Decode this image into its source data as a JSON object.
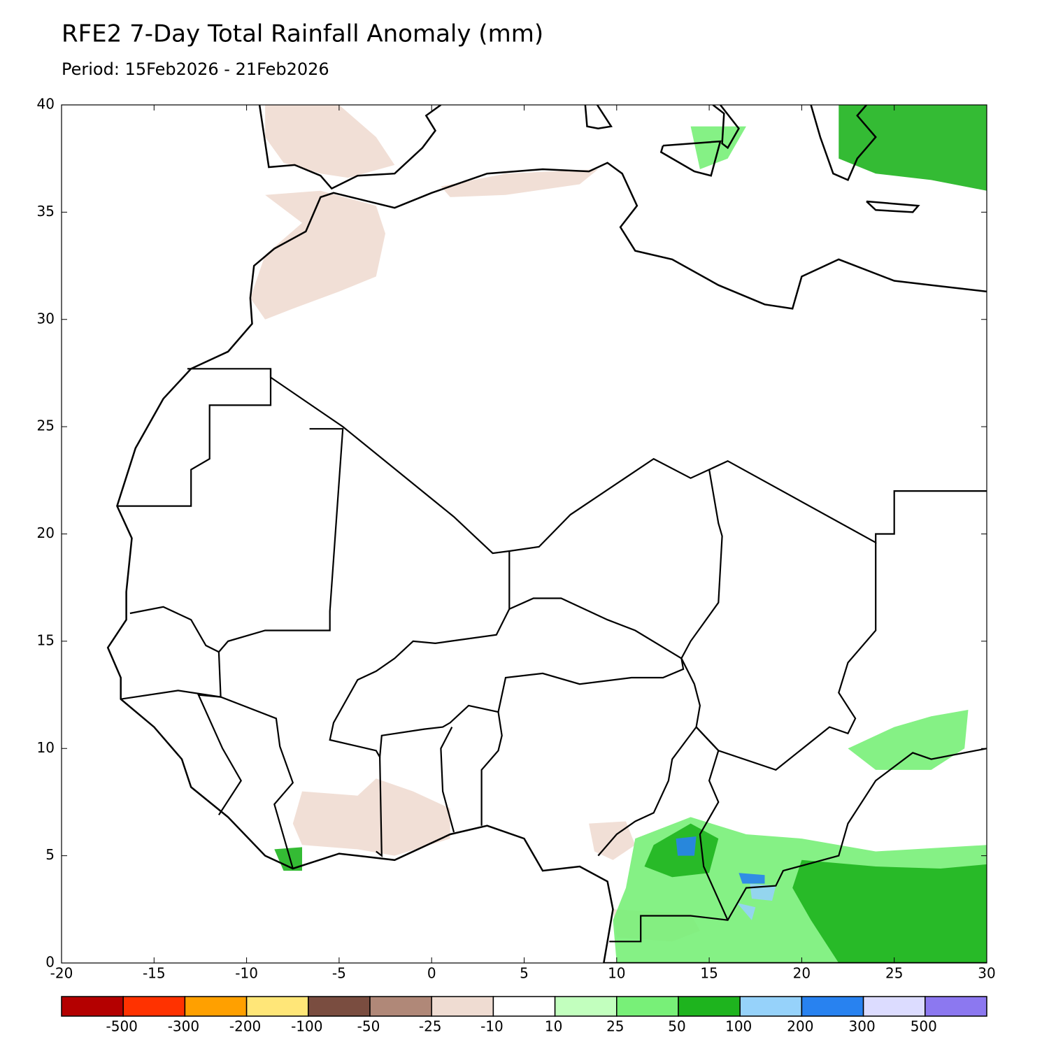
{
  "header": {
    "title": "RFE2 7-Day Total Rainfall Anomaly (mm)",
    "subtitle": "Period: 15Feb2026 - 21Feb2026"
  },
  "map": {
    "xlim": [
      -20,
      30
    ],
    "ylim": [
      0,
      40
    ],
    "xticks": [
      -20,
      -15,
      -10,
      -5,
      0,
      5,
      10,
      15,
      20,
      25,
      30
    ],
    "yticks": [
      0,
      5,
      10,
      15,
      20,
      25,
      30,
      35,
      40
    ]
  },
  "colorbar": {
    "colors": [
      "#b40000",
      "#ff3200",
      "#ffa000",
      "#ffe678",
      "#7a4d40",
      "#b08878",
      "#efdcd2",
      "#ffffff",
      "#c2ffbe",
      "#78f078",
      "#1eb41e",
      "#96d2fa",
      "#2882f0",
      "#dcdcff",
      "#8c78f0"
    ],
    "levels": [
      -500,
      -300,
      -200,
      -100,
      -50,
      -25,
      -10,
      10,
      25,
      50,
      100,
      200,
      300,
      500
    ]
  }
}
